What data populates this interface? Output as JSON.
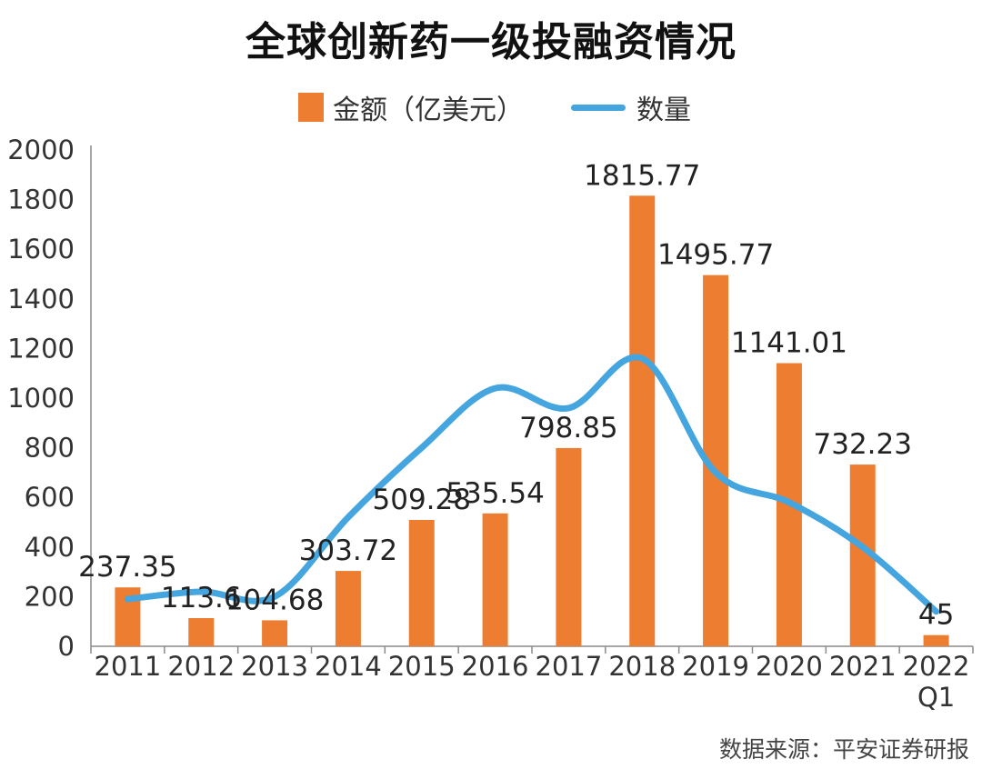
{
  "chart_data": {
    "type": "bar+line",
    "title": "全球创新药一级投融资情况",
    "categories": [
      "2011",
      "2012",
      "2013",
      "2014",
      "2015",
      "2016",
      "2017",
      "2018",
      "2019",
      "2020",
      "2021",
      "2022 Q1"
    ],
    "category_lines": [
      [
        "2011"
      ],
      [
        "2012"
      ],
      [
        "2013"
      ],
      [
        "2014"
      ],
      [
        "2015"
      ],
      [
        "2016"
      ],
      [
        "2017"
      ],
      [
        "2018"
      ],
      [
        "2019"
      ],
      [
        "2020"
      ],
      [
        "2021"
      ],
      [
        "2022",
        "Q1"
      ]
    ],
    "series": [
      {
        "name": "金额（亿美元）",
        "type": "bar",
        "color": "#ED7D31",
        "values": [
          237.35,
          113.6,
          104.68,
          303.72,
          509.28,
          535.54,
          798.85,
          1815.77,
          1495.77,
          1141.01,
          732.23,
          45
        ],
        "labels": [
          "237.35",
          "113.6",
          "104.68",
          "303.72",
          "509.28",
          "535.54",
          "798.85",
          "1815.77",
          "1495.77",
          "1141.01",
          "732.23",
          "45"
        ]
      },
      {
        "name": "数量",
        "type": "line",
        "smooth": true,
        "color": "#45A5DE",
        "values": [
          190,
          220,
          200,
          520,
          800,
          1040,
          960,
          1160,
          700,
          580,
          400,
          140
        ]
      }
    ],
    "y_ticks": [
      "2000",
      "1800",
      "1600",
      "1400",
      "1200",
      "1000",
      "800",
      "600",
      "400",
      "200",
      "0"
    ],
    "ylim": [
      0,
      2000
    ],
    "xlabel": "",
    "ylabel": "",
    "legend_position": "top-center",
    "grid": false
  },
  "source": "数据来源：平安证券研报"
}
